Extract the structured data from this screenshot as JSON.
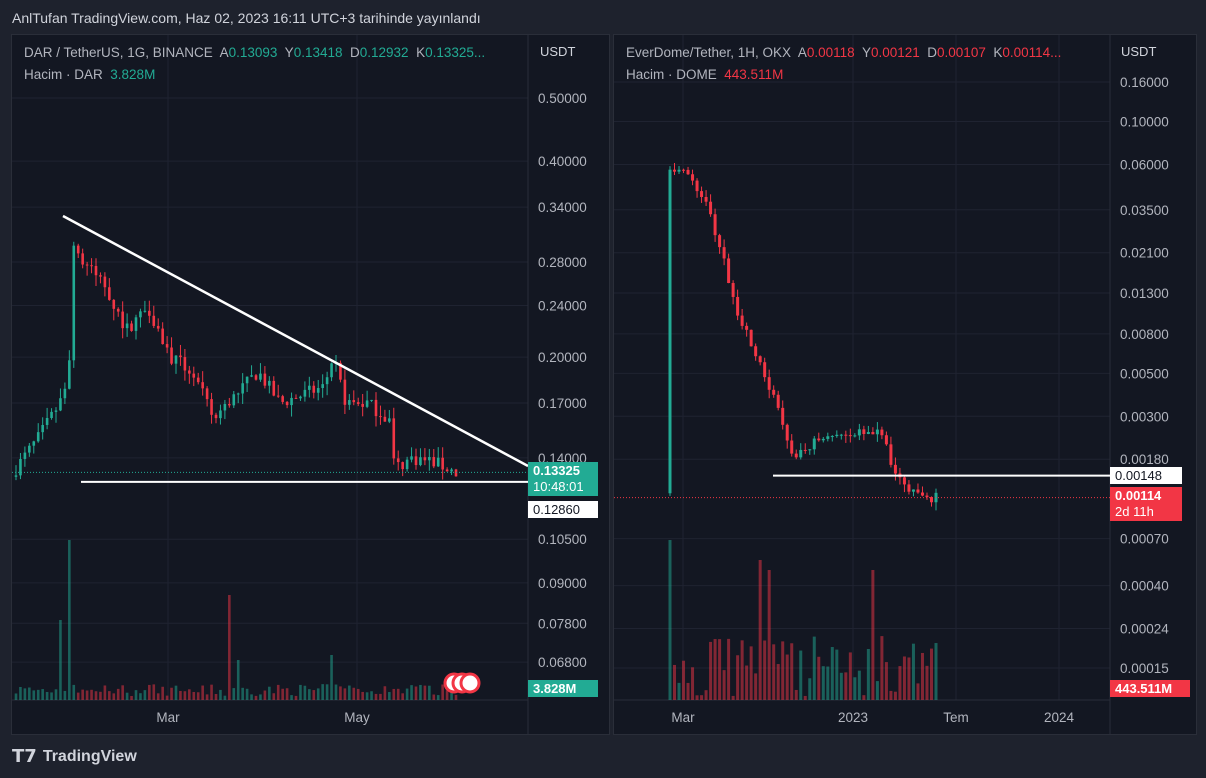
{
  "header": {
    "published": "AnlTufan TradingView.com, Haz 02, 2023 16:11 UTC+3 tarihinde yayınlandı"
  },
  "left": {
    "symbol": "DAR / TetherUS, 1G, BINANCE",
    "o_label": "A",
    "o": "0.13093",
    "h_label": "Y",
    "h": "0.13418",
    "l_label": "D",
    "l": "0.12932",
    "c_label": "K",
    "c": "0.13325...",
    "vol_label": "Hacim · DAR",
    "vol": "3.828M",
    "unit": "USDT",
    "price_tag": "0.13325",
    "countdown": "10:48:01",
    "line_tag": "0.12860",
    "vol_tag": "3.828M"
  },
  "right": {
    "symbol": "EverDome/Tether, 1H, OKX",
    "o_label": "A",
    "o": "0.00118",
    "h_label": "Y",
    "h": "0.00121",
    "l_label": "D",
    "l": "0.00107",
    "c_label": "K",
    "c": "0.00114...",
    "vol_label": "Hacim · DOME",
    "vol": "443.511M",
    "unit": "USDT",
    "price_tag": "0.00114",
    "countdown": "2d 11h",
    "line_tag": "0.00148",
    "vol_tag": "443.511M"
  },
  "footer": {
    "brand": "TradingView"
  },
  "colors": {
    "up": "#22ab94",
    "down": "#f23645",
    "bg": "#131722"
  },
  "chart_data": [
    {
      "type": "candlestick",
      "scale": "log",
      "y_ticks": [
        "0.50000",
        "0.40000",
        "0.34000",
        "0.28000",
        "0.24000",
        "0.20000",
        "0.17000",
        "0.14000",
        "0.10500",
        "0.09000",
        "0.07800",
        "0.06800"
      ],
      "x_ticks": [
        "Mar",
        "May"
      ],
      "path": [
        [
          0,
          0.135
        ],
        [
          5,
          0.15
        ],
        [
          10,
          0.17
        ],
        [
          12,
          0.19
        ],
        [
          13,
          0.3
        ],
        [
          15,
          0.28
        ],
        [
          20,
          0.26
        ],
        [
          25,
          0.22
        ],
        [
          30,
          0.24
        ],
        [
          35,
          0.2
        ],
        [
          40,
          0.19
        ],
        [
          45,
          0.16
        ],
        [
          50,
          0.175
        ],
        [
          55,
          0.19
        ],
        [
          60,
          0.17
        ],
        [
          65,
          0.175
        ],
        [
          70,
          0.18
        ],
        [
          72,
          0.2
        ],
        [
          75,
          0.17
        ],
        [
          80,
          0.17
        ],
        [
          85,
          0.16
        ],
        [
          86,
          0.135
        ],
        [
          90,
          0.14
        ],
        [
          95,
          0.138
        ],
        [
          100,
          0.133
        ]
      ],
      "hline": 0.1286,
      "trendline": [
        [
          0.335
        ],
        [
          0.135
        ]
      ]
    },
    {
      "type": "candlestick",
      "scale": "log",
      "y_ticks": [
        "0.16000",
        "0.10000",
        "0.06000",
        "0.03500",
        "0.02100",
        "0.01300",
        "0.00800",
        "0.00500",
        "0.00300",
        "0.00180",
        "0.00070",
        "0.00040",
        "0.00024",
        "0.00015"
      ],
      "x_ticks": [
        "Mar",
        "2023",
        "Tem",
        "2024"
      ],
      "path": [
        [
          0,
          0.06
        ],
        [
          3,
          0.055
        ],
        [
          8,
          0.04
        ],
        [
          12,
          0.02
        ],
        [
          15,
          0.01
        ],
        [
          20,
          0.006
        ],
        [
          25,
          0.003
        ],
        [
          28,
          0.0018
        ],
        [
          32,
          0.0022
        ],
        [
          40,
          0.0025
        ],
        [
          45,
          0.0024
        ],
        [
          48,
          0.0025
        ],
        [
          50,
          0.0016
        ],
        [
          55,
          0.0012
        ],
        [
          58,
          0.0011
        ],
        [
          60,
          0.00114
        ]
      ],
      "hline": 0.00148
    }
  ]
}
